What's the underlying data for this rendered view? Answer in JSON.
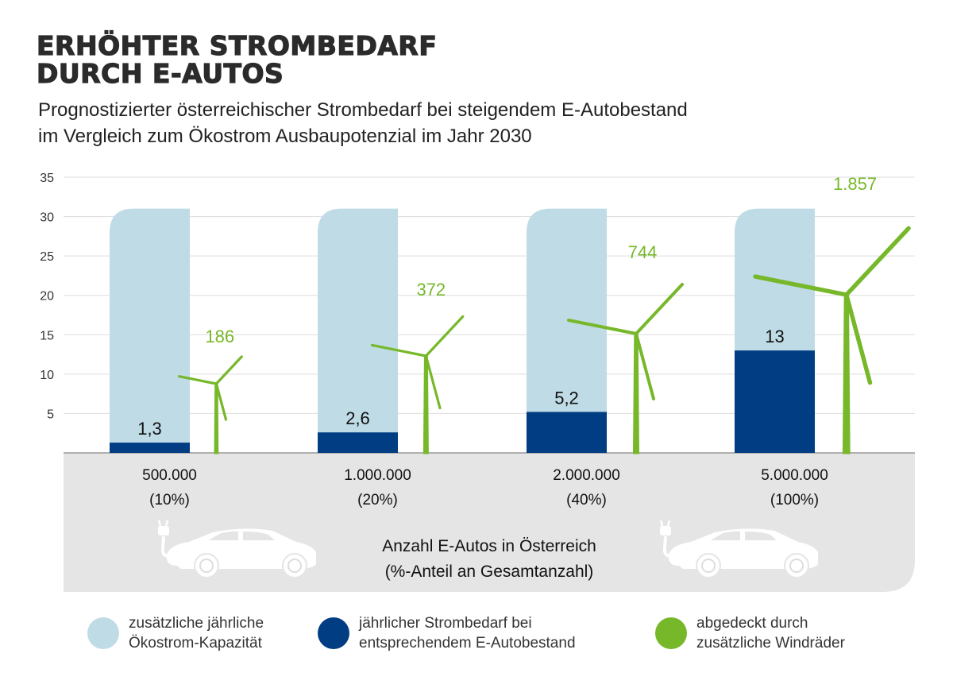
{
  "title_lines": [
    "ERHÖHTER STROMBEDARF",
    "DURCH E-AUTOS"
  ],
  "subtitle_lines": [
    "Prognostizierter österreichischer Strombedarf bei steigendem E-Autobestand",
    "im Vergleich zum Ökostrom Ausbaupotenzial im Jahr 2030"
  ],
  "colors": {
    "capacity": "#bfdbe6",
    "demand": "#003d82",
    "wind": "#77b82a",
    "band": "#e5e5e5",
    "grid": "#dddddd"
  },
  "chart_data": {
    "type": "bar",
    "title": "ERHÖHTER STROMBEDARF DURCH E-AUTOS",
    "xlabel": "Anzahl E-Autos in Österreich (%-Anteil an Gesamtanzahl)",
    "ylabel": "",
    "ylim": [
      0,
      35
    ],
    "yticks": [
      "5",
      "10",
      "15",
      "20",
      "25",
      "30",
      "35"
    ],
    "grid": true,
    "categories": [
      {
        "count": "500.000",
        "share": "(10%)"
      },
      {
        "count": "1.000.000",
        "share": "(20%)"
      },
      {
        "count": "2.000.000",
        "share": "(40%)"
      },
      {
        "count": "5.000.000",
        "share": "(100%)"
      }
    ],
    "series": [
      {
        "name": "zusätzliche jährliche Ökostrom-Kapazität",
        "values": [
          31,
          31,
          31,
          31
        ]
      },
      {
        "name": "jährlicher Strombedarf bei entsprechendem E-Autobestand",
        "values": [
          1.3,
          2.6,
          5.2,
          13
        ],
        "labels": [
          "1,3",
          "2,6",
          "5,2",
          "13"
        ]
      },
      {
        "name": "abgedeckt durch zusätzliche Windräder",
        "values": [
          186,
          372,
          744,
          1857
        ],
        "labels": [
          "186",
          "372",
          "744",
          "1.857"
        ]
      }
    ],
    "xlabel_lines": [
      "Anzahl E-Autos in Österreich",
      "(%-Anteil an Gesamtanzahl)"
    ]
  },
  "legend": [
    {
      "lines": [
        "zusätzliche jährliche",
        "Ökostrom-Kapazität"
      ],
      "color": "#bfdbe6"
    },
    {
      "lines": [
        "jährlicher Strombedarf bei",
        "entsprechendem E-Autobestand"
      ],
      "color": "#003d82"
    },
    {
      "lines": [
        "abgedeckt durch",
        "zusätzliche Windräder"
      ],
      "color": "#77b82a"
    }
  ],
  "icons": [
    "electric-car-icon",
    "wind-turbine-icon"
  ]
}
